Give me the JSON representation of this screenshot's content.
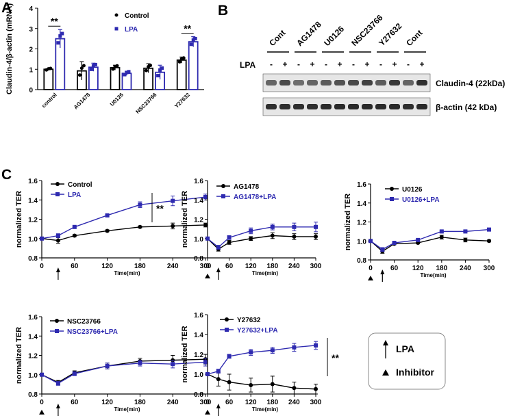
{
  "figure": {
    "panel_labels": [
      "A",
      "B",
      "C"
    ]
  },
  "chart_data": [
    {
      "id": "A",
      "type": "bar",
      "ylabel": "Claudin-4/β-actin (mRNA)",
      "ylim": [
        0,
        4
      ],
      "yticks": [
        0,
        1,
        2,
        3,
        4
      ],
      "categories": [
        "control",
        "AG1478",
        "U0126",
        "NSC23766",
        "Y27632"
      ],
      "series": [
        {
          "name": "Control",
          "color": "#000000",
          "values": [
            1.0,
            0.92,
            1.08,
            1.05,
            1.45
          ],
          "errors": [
            0.02,
            0.45,
            0.12,
            0.22,
            0.15
          ]
        },
        {
          "name": "LPA",
          "color": "#2e2ab0",
          "values": [
            2.5,
            1.1,
            0.8,
            0.85,
            2.35
          ],
          "errors": [
            0.45,
            0.2,
            0.1,
            0.35,
            0.25
          ]
        }
      ],
      "significance": [
        {
          "category": "control",
          "text": "**"
        },
        {
          "category": "Y27632",
          "text": "**"
        }
      ]
    },
    {
      "id": "C1",
      "type": "line",
      "ylabel": "normalized TER",
      "xlabel": "Time(min)",
      "ylim": [
        0.8,
        1.6
      ],
      "yticks": [
        "0.8",
        "1.0",
        "1.2",
        "1.4",
        "1.6"
      ],
      "xlim": [
        0,
        300
      ],
      "xticks": [
        "0",
        "60",
        "120",
        "180",
        "240",
        "300"
      ],
      "x": [
        0,
        30,
        60,
        120,
        180,
        240,
        300
      ],
      "series": [
        {
          "name": "Control",
          "color": "#000000",
          "values": [
            1.0,
            0.98,
            1.03,
            1.08,
            1.12,
            1.13,
            1.14
          ],
          "errors": [
            0,
            0.03,
            0.01,
            0.01,
            0.01,
            0.03,
            0.02
          ]
        },
        {
          "name": "LPA",
          "color": "#2e2ab0",
          "values": [
            1.0,
            1.03,
            1.12,
            1.24,
            1.35,
            1.39,
            1.43
          ],
          "errors": [
            0,
            0.02,
            0.01,
            0.01,
            0.03,
            0.05,
            0.03
          ]
        }
      ],
      "lpa_arrow_at": 30,
      "inhibitor_at": null,
      "significance": "**"
    },
    {
      "id": "C2",
      "type": "line",
      "ylabel": "normalized TER",
      "xlabel": "Time(min)",
      "ylim": [
        0.8,
        1.6
      ],
      "yticks": [
        "0.8",
        "1.0",
        "1.2",
        "1.4",
        "1.6"
      ],
      "xlim": [
        0,
        300
      ],
      "xticks": [
        "0",
        "60",
        "120",
        "180",
        "240",
        "300"
      ],
      "x": [
        0,
        30,
        60,
        120,
        180,
        240,
        300
      ],
      "series": [
        {
          "name": "AG1478",
          "color": "#000000",
          "values": [
            1.0,
            0.89,
            0.96,
            1.0,
            1.03,
            1.02,
            1.02
          ],
          "errors": [
            0,
            0.02,
            0.02,
            0.02,
            0.03,
            0.03,
            0.03
          ]
        },
        {
          "name": "AG1478+LPA",
          "color": "#2e2ab0",
          "values": [
            1.0,
            0.91,
            1.01,
            1.08,
            1.12,
            1.12,
            1.12
          ],
          "errors": [
            0,
            0.02,
            0.02,
            0.03,
            0.03,
            0.04,
            0.05
          ]
        }
      ],
      "lpa_arrow_at": 30,
      "inhibitor_at": 0,
      "significance": null
    },
    {
      "id": "C3",
      "type": "line",
      "ylabel": "normalized TER",
      "xlabel": "Time(min)",
      "ylim": [
        0.8,
        1.6
      ],
      "yticks": [
        "0.8",
        "1.0",
        "1.2",
        "1.4",
        "1.6"
      ],
      "xlim": [
        0,
        300
      ],
      "xticks": [
        "0",
        "60",
        "120",
        "180",
        "240",
        "300"
      ],
      "x": [
        0,
        30,
        60,
        120,
        180,
        240,
        300
      ],
      "series": [
        {
          "name": "U0126",
          "color": "#000000",
          "values": [
            1.0,
            0.89,
            0.97,
            0.98,
            1.04,
            1.01,
            1.0
          ],
          "errors": [
            0,
            0.02,
            0.01,
            0.01,
            0.02,
            0.02,
            0.01
          ]
        },
        {
          "name": "U0126+LPA",
          "color": "#2e2ab0",
          "values": [
            1.0,
            0.91,
            0.98,
            1.01,
            1.1,
            1.1,
            1.12
          ],
          "errors": [
            0,
            0.02,
            0.01,
            0.01,
            0.01,
            0.01,
            0.01
          ]
        }
      ],
      "lpa_arrow_at": 30,
      "inhibitor_at": 0,
      "significance": null
    },
    {
      "id": "C4",
      "type": "line",
      "ylabel": "normalized TER",
      "xlabel": "Time(min)",
      "ylim": [
        0.8,
        1.6
      ],
      "yticks": [
        "0.8",
        "1.0",
        "1.2",
        "1.4",
        "1.6"
      ],
      "xlim": [
        0,
        300
      ],
      "xticks": [
        "0",
        "60",
        "120",
        "180",
        "240",
        "300"
      ],
      "x": [
        0,
        30,
        60,
        120,
        180,
        240,
        300
      ],
      "series": [
        {
          "name": "NSC23766",
          "color": "#000000",
          "values": [
            1.0,
            0.92,
            1.02,
            1.09,
            1.14,
            1.15,
            1.16
          ],
          "errors": [
            0,
            0.02,
            0.02,
            0.03,
            0.03,
            0.05,
            0.05
          ]
        },
        {
          "name": "NSC23766+LPA",
          "color": "#2e2ab0",
          "values": [
            1.0,
            0.91,
            1.01,
            1.09,
            1.12,
            1.11,
            1.13
          ],
          "errors": [
            0,
            0.02,
            0.02,
            0.03,
            0.03,
            0.04,
            0.04
          ]
        }
      ],
      "lpa_arrow_at": 30,
      "inhibitor_at": 0,
      "significance": null
    },
    {
      "id": "C5",
      "type": "line",
      "ylabel": "normalized TER",
      "xlabel": "Time(min)",
      "ylim": [
        0.8,
        1.6
      ],
      "yticks": [
        "0.8",
        "1.0",
        "1.2",
        "1.4",
        "1.6"
      ],
      "xlim": [
        0,
        300
      ],
      "xticks": [
        "0",
        "60",
        "120",
        "180",
        "240",
        "300"
      ],
      "x": [
        0,
        30,
        60,
        120,
        180,
        240,
        300
      ],
      "series": [
        {
          "name": "Y27632",
          "color": "#000000",
          "values": [
            1.0,
            0.95,
            0.92,
            0.89,
            0.9,
            0.86,
            0.85
          ],
          "errors": [
            0,
            0.07,
            0.08,
            0.07,
            0.08,
            0.06,
            0.05
          ]
        },
        {
          "name": "Y27632+LPA",
          "color": "#2e2ab0",
          "values": [
            1.0,
            1.03,
            1.18,
            1.22,
            1.24,
            1.27,
            1.29
          ],
          "errors": [
            0,
            0.02,
            0.02,
            0.03,
            0.03,
            0.04,
            0.04
          ]
        }
      ],
      "lpa_arrow_at": 30,
      "inhibitor_at": 0,
      "significance": "**"
    }
  ],
  "blot": {
    "groups": [
      "Cont",
      "AG1478",
      "U0126",
      "NSC23766",
      "Y27632",
      "Cont"
    ],
    "lpa_label": "LPA",
    "lane_signs": [
      "-",
      "+",
      "-",
      "+",
      "-",
      "+",
      "-",
      "+",
      "-",
      "+",
      "-",
      "+"
    ],
    "bands": [
      "Claudin-4 (22kDa)",
      "β-actin (42 kDa)"
    ],
    "claudin_intensity": [
      0.55,
      0.7,
      0.5,
      0.55,
      0.6,
      0.65,
      0.7,
      0.75,
      0.6,
      0.8,
      0.55,
      0.85
    ],
    "actin_intensity": [
      0.85,
      0.85,
      0.85,
      0.85,
      0.88,
      0.88,
      0.88,
      0.88,
      0.88,
      0.88,
      0.85,
      0.88
    ]
  },
  "key": {
    "lpa_label": "LPA",
    "inhibitor_label": "Inhibitor"
  },
  "colors": {
    "black": "#000000",
    "blue": "#2e2ab0"
  }
}
